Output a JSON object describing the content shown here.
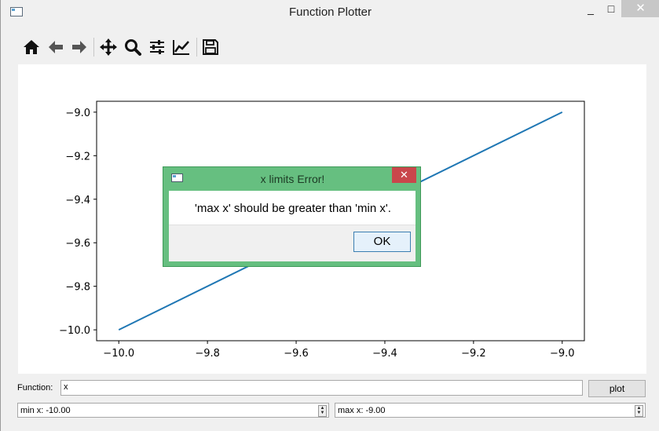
{
  "window": {
    "title": "Function Plotter",
    "minimize": "_",
    "maximize": "□",
    "close": "✕"
  },
  "toolbar": [
    {
      "name": "home-icon"
    },
    {
      "name": "back-arrow-icon"
    },
    {
      "name": "forward-arrow-icon"
    },
    {
      "name": "pan-icon"
    },
    {
      "name": "zoom-icon"
    },
    {
      "name": "configure-subplots-icon"
    },
    {
      "name": "edit-axes-icon"
    },
    {
      "name": "save-icon"
    }
  ],
  "chart_data": {
    "type": "line",
    "x": [
      -10.0,
      -9.0
    ],
    "y": [
      -10.0,
      -9.0
    ],
    "xlim": [
      -10.05,
      -8.95
    ],
    "ylim": [
      -10.05,
      -8.95
    ],
    "xticks": [
      "−10.0",
      "−9.8",
      "−9.6",
      "−9.4",
      "−9.2",
      "−9.0"
    ],
    "yticks": [
      "−10.0",
      "−9.8",
      "−9.6",
      "−9.4",
      "−9.2",
      "−9.0"
    ],
    "xtick_values": [
      -10.0,
      -9.8,
      -9.6,
      -9.4,
      -9.2,
      -9.0
    ],
    "ytick_values": [
      -10.0,
      -9.8,
      -9.6,
      -9.4,
      -9.2,
      -9.0
    ],
    "line_color": "#1f77b4",
    "grid": false
  },
  "controls": {
    "function_label": "Function:",
    "function_value": "x",
    "plot_button": "plot",
    "min_x": "min x: -10.00",
    "max_x": "max x: -9.00"
  },
  "dialog": {
    "title": "x limits Error!",
    "close": "✕",
    "message": "'max x' should be greater than 'min x'.",
    "ok_button": "OK"
  }
}
